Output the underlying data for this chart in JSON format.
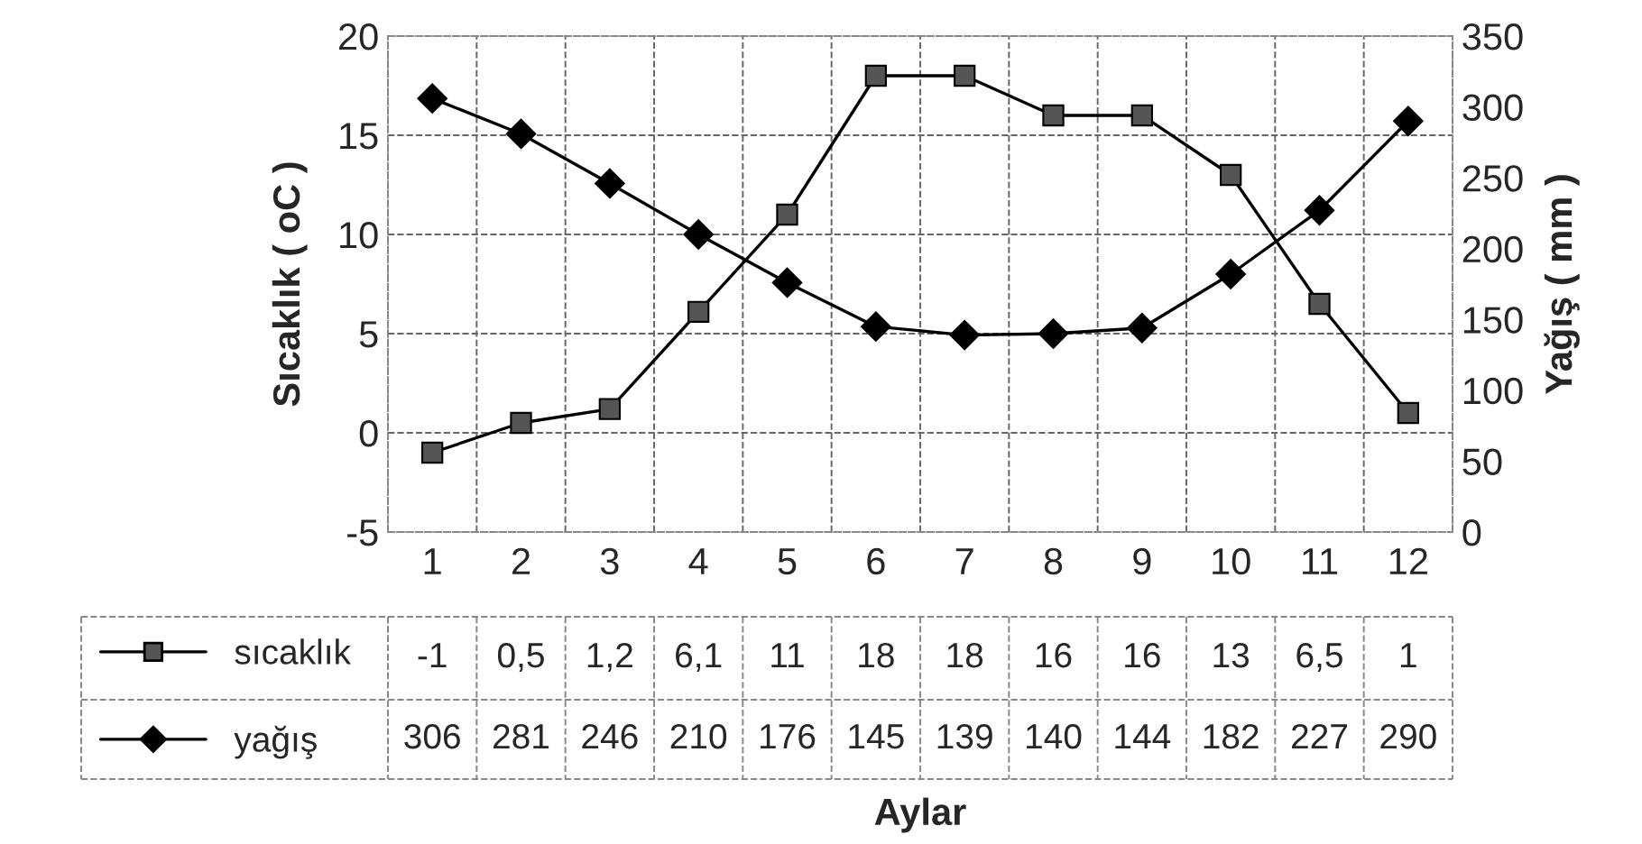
{
  "chart_data": {
    "type": "line",
    "categories": [
      "1",
      "2",
      "3",
      "4",
      "5",
      "6",
      "7",
      "8",
      "9",
      "10",
      "11",
      "12"
    ],
    "series": [
      {
        "name": "sıcaklık",
        "color": "#555555",
        "marker": "square",
        "values": [
          -1,
          0.5,
          1.2,
          6.1,
          11,
          18,
          18,
          16,
          16,
          13,
          6.5,
          1
        ],
        "value_labels": [
          "-1",
          "0,5",
          "1,2",
          "6,1",
          "11",
          "18",
          "18",
          "16",
          "16",
          "13",
          "6,5",
          "1"
        ]
      },
      {
        "name": "yağış",
        "color": "#000000",
        "marker": "diamond",
        "axis": "y2",
        "values": [
          306,
          281,
          246,
          210,
          176,
          145,
          139,
          140,
          144,
          182,
          227,
          290
        ],
        "value_labels": [
          "306",
          "281",
          "246",
          "210",
          "176",
          "145",
          "139",
          "140",
          "144",
          "182",
          "227",
          "290"
        ]
      }
    ],
    "annotations": [
      "Aylar"
    ],
    "ylabel": "Sıcaklık ( oC )",
    "y2label": "Yağış ( mm )",
    "ylim": [
      -5,
      20
    ],
    "yticks": [
      -5,
      0,
      5,
      10,
      15,
      20
    ],
    "y2lim": [
      0,
      350
    ],
    "y2ticks": [
      0,
      50,
      100,
      150,
      200,
      250,
      300,
      350
    ],
    "grid": true,
    "legend": "bottom",
    "line_style": "solid"
  }
}
